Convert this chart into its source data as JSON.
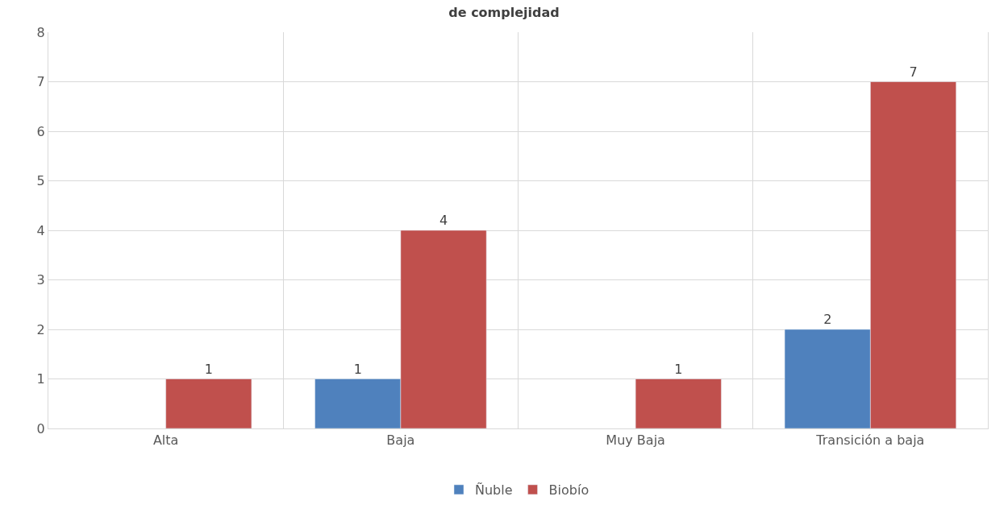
{
  "chart_data": {
    "type": "bar",
    "title": "de complejidad",
    "categories": [
      "Alta",
      "Baja",
      "Muy Baja",
      "Transición a baja"
    ],
    "series": [
      {
        "name": "Ñuble",
        "color": "#4f81bd",
        "values": [
          null,
          1,
          null,
          2
        ]
      },
      {
        "name": "Biobío",
        "color": "#c0504d",
        "values": [
          1,
          4,
          1,
          7
        ]
      }
    ],
    "ylim": [
      0,
      8
    ],
    "yticks": [
      0,
      1,
      2,
      3,
      4,
      5,
      6,
      7,
      8
    ],
    "grid": true,
    "legend": "bottom",
    "data_labels": true
  }
}
